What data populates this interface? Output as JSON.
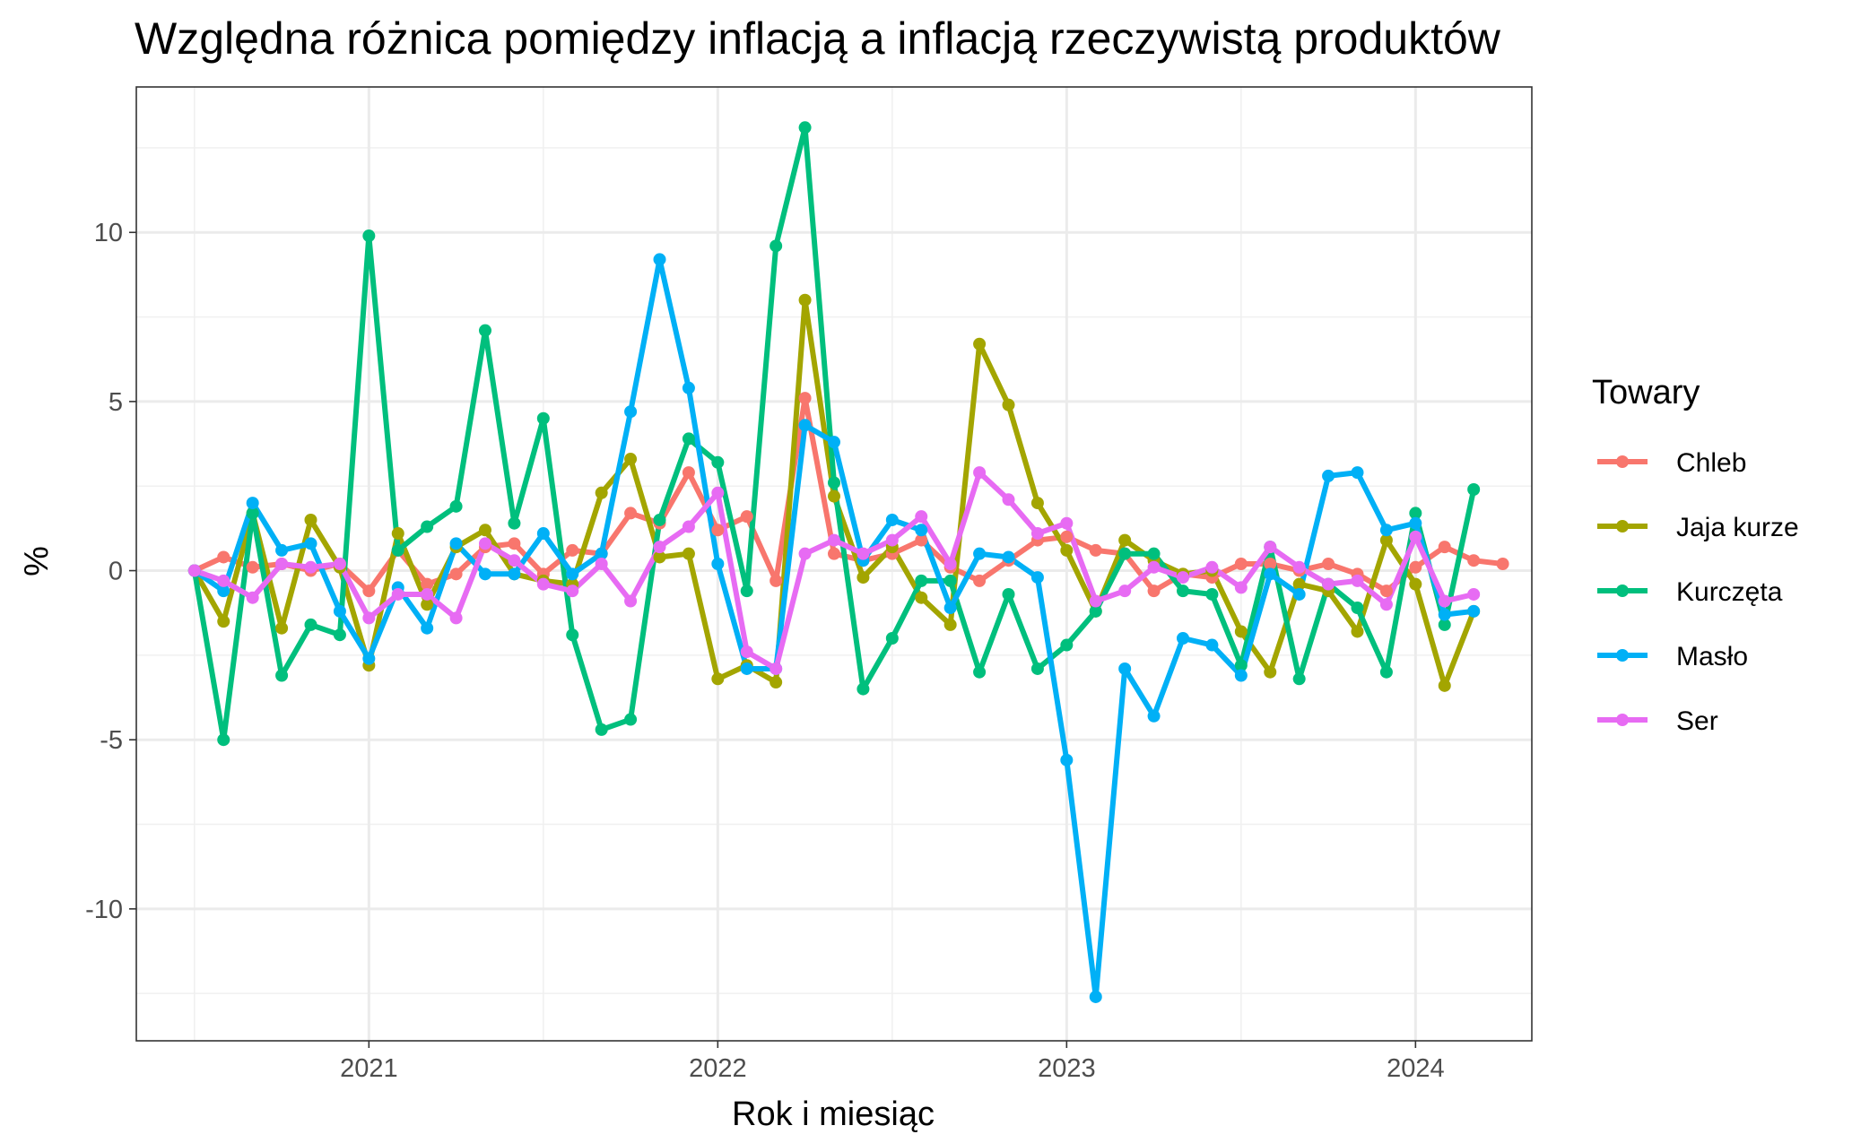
{
  "chart_data": {
    "type": "line",
    "title": "Względna różnica pomiędzy inflacją a inflacją rzeczywistą produktów",
    "xlabel": "Rok i miesiąc",
    "ylabel": "%",
    "x_start": "2020-07",
    "x_tick_labels": [
      "2021",
      "2022",
      "2023",
      "2024"
    ],
    "y_ticks": [
      -10,
      -5,
      0,
      5,
      10
    ],
    "y_tick_labels": [
      "-10",
      "-5",
      "0",
      "5",
      "10"
    ],
    "ylim": [
      -13.9,
      14.3
    ],
    "xlim": [
      "2020-05",
      "2024-05"
    ],
    "grid": true,
    "legend": {
      "title": "Towary",
      "position": "right"
    },
    "series": [
      {
        "name": "Chleb",
        "color": "#F8766D",
        "values": [
          0,
          0.4,
          0.1,
          0.2,
          0,
          0.2,
          -0.6,
          0.6,
          -0.4,
          -0.1,
          0.7,
          0.8,
          -0.1,
          0.6,
          0.5,
          1.7,
          1.4,
          2.9,
          1.2,
          1.6,
          -0.3,
          5.1,
          0.5,
          0.3,
          0.5,
          0.9,
          0.1,
          -0.3,
          0.3,
          0.9,
          1.0,
          0.6,
          0.5,
          -0.6,
          -0.1,
          -0.2,
          0.2,
          0.2,
          0,
          0.2,
          -0.1,
          -0.6,
          0.1,
          0.7,
          0.3,
          0.2
        ]
      },
      {
        "name": "Jaja kurze",
        "color": "#A3A500",
        "values": [
          0,
          -1.5,
          1.7,
          -1.7,
          1.5,
          0.1,
          -2.8,
          1.1,
          -1.0,
          0.7,
          1.2,
          -0.1,
          -0.3,
          -0.4,
          2.3,
          3.3,
          0.4,
          0.5,
          -3.2,
          -2.8,
          -3.3,
          8.0,
          2.2,
          -0.2,
          0.7,
          -0.8,
          -1.6,
          6.7,
          4.9,
          2.0,
          0.6,
          -1.2,
          0.9,
          0.3,
          -0.1,
          0,
          -1.8,
          -3.0,
          -0.4,
          -0.6,
          -1.8,
          0.9,
          -0.4,
          -3.4,
          -1.2
        ]
      },
      {
        "name": "Kurczęta",
        "color": "#00BF7D",
        "values": [
          0,
          -5.0,
          1.7,
          -3.1,
          -1.6,
          -1.9,
          9.9,
          0.6,
          1.3,
          1.9,
          7.1,
          1.4,
          4.5,
          -1.9,
          -4.7,
          -4.4,
          1.5,
          3.9,
          3.2,
          -0.6,
          9.6,
          13.1,
          2.6,
          -3.5,
          -2.0,
          -0.3,
          -0.3,
          -3.0,
          -0.7,
          -2.9,
          -2.2,
          -1.2,
          0.5,
          0.5,
          -0.6,
          -0.7,
          -2.8,
          0.7,
          -3.2,
          -0.4,
          -1.1,
          -3.0,
          1.7,
          -1.6,
          2.4
        ]
      },
      {
        "name": "Masło",
        "color": "#00B0F6",
        "values": [
          0,
          -0.6,
          2.0,
          0.6,
          0.8,
          -1.2,
          -2.6,
          -0.5,
          -1.7,
          0.8,
          -0.1,
          -0.1,
          1.1,
          -0.1,
          0.5,
          4.7,
          9.2,
          5.4,
          0.2,
          -2.9,
          -2.9,
          4.3,
          3.8,
          0.3,
          1.5,
          1.2,
          -1.1,
          0.5,
          0.4,
          -0.2,
          -5.6,
          -12.6,
          -2.9,
          -4.3,
          -2.0,
          -2.2,
          -3.1,
          -0.1,
          -0.7,
          2.8,
          2.9,
          1.2,
          1.4,
          -1.3,
          -1.2
        ]
      },
      {
        "name": "Ser",
        "color": "#E76BF3",
        "values": [
          0,
          -0.3,
          -0.8,
          0.2,
          0.1,
          0.2,
          -1.4,
          -0.7,
          -0.7,
          -1.4,
          0.8,
          0.3,
          -0.4,
          -0.6,
          0.2,
          -0.9,
          0.7,
          1.3,
          2.3,
          -2.4,
          -2.9,
          0.5,
          0.9,
          0.5,
          0.9,
          1.6,
          0.2,
          2.9,
          2.1,
          1.1,
          1.4,
          -0.9,
          -0.6,
          0.1,
          -0.2,
          0.1,
          -0.5,
          0.7,
          0.1,
          -0.4,
          -0.3,
          -1.0,
          1.0,
          -0.9,
          -0.7
        ]
      }
    ]
  }
}
